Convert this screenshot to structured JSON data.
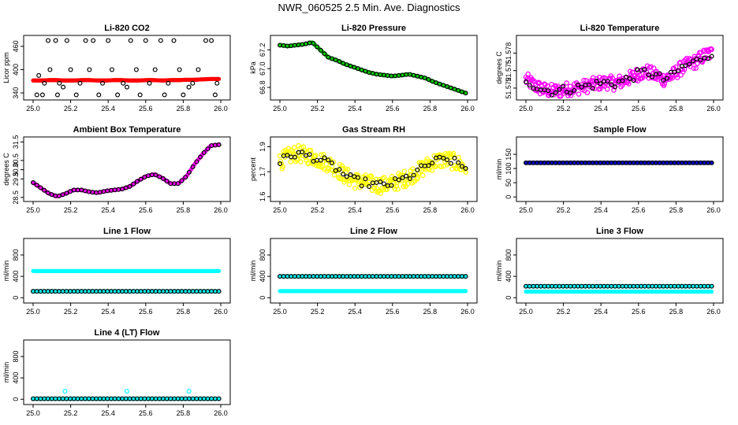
{
  "page": {
    "title": "NWR_060525  2.5 Min. Ave. Diagnostics"
  },
  "chart_data": [
    {
      "id": "co2",
      "type": "scatter",
      "title": "Li-820 CO2",
      "xlabel": "",
      "ylabel": "Licor ppm",
      "xlim": [
        25.0,
        26.0
      ],
      "ylim": [
        330,
        480
      ],
      "xticks": [
        25.0,
        25.2,
        25.4,
        25.6,
        25.8,
        26.0
      ],
      "yticks": [
        340,
        400,
        460
      ],
      "series": [
        {
          "color": "#ff0000",
          "marker": "dense",
          "y": [
            372,
            372,
            373,
            373,
            372,
            372,
            373,
            373,
            372,
            372,
            373,
            373,
            372,
            372,
            373,
            373,
            372,
            373,
            373,
            374,
            374,
            375,
            376,
            376
          ]
        },
        {
          "color": "#000000",
          "marker": "circle",
          "points": [
            [
              25.02,
              335
            ],
            [
              25.03,
              385
            ],
            [
              25.05,
              335
            ],
            [
              25.06,
              365
            ],
            [
              25.08,
              475
            ],
            [
              25.09,
              400
            ],
            [
              25.12,
              475
            ],
            [
              25.13,
              335
            ],
            [
              25.14,
              365
            ],
            [
              25.16,
              355
            ],
            [
              25.18,
              475
            ],
            [
              25.2,
              400
            ],
            [
              25.23,
              335
            ],
            [
              25.25,
              365
            ],
            [
              25.28,
              475
            ],
            [
              25.3,
              400
            ],
            [
              25.32,
              475
            ],
            [
              25.35,
              335
            ],
            [
              25.37,
              365
            ],
            [
              25.4,
              475
            ],
            [
              25.42,
              400
            ],
            [
              25.45,
              335
            ],
            [
              25.48,
              365
            ],
            [
              25.5,
              355
            ],
            [
              25.52,
              475
            ],
            [
              25.55,
              400
            ],
            [
              25.57,
              335
            ],
            [
              25.6,
              475
            ],
            [
              25.62,
              365
            ],
            [
              25.65,
              400
            ],
            [
              25.68,
              475
            ],
            [
              25.7,
              335
            ],
            [
              25.72,
              365
            ],
            [
              25.75,
              475
            ],
            [
              25.78,
              400
            ],
            [
              25.8,
              335
            ],
            [
              25.83,
              355
            ],
            [
              25.85,
              365
            ],
            [
              25.88,
              400
            ],
            [
              25.92,
              475
            ],
            [
              25.95,
              475
            ],
            [
              25.97,
              335
            ],
            [
              25.98,
              365
            ]
          ]
        }
      ]
    },
    {
      "id": "pressure",
      "type": "scatter",
      "title": "Li-820 Pressure",
      "xlabel": "",
      "ylabel": "kPa",
      "xlim": [
        25.0,
        26.0
      ],
      "ylim": [
        66.7,
        67.32
      ],
      "xticks": [
        25.0,
        25.2,
        25.4,
        25.6,
        25.8,
        26.0
      ],
      "yticks": [
        66.8,
        67.0,
        67.2
      ],
      "series": [
        {
          "color": "#00cc00",
          "marker": "dense",
          "y": [
            67.25,
            67.24,
            67.25,
            67.26,
            67.28,
            67.2,
            67.12,
            67.09,
            67.05,
            67.02,
            66.99,
            66.96,
            66.94,
            66.93,
            66.92,
            66.93,
            66.94,
            66.92,
            66.9,
            66.86,
            66.83,
            66.8,
            66.77,
            66.74
          ]
        },
        {
          "color": "#000000",
          "marker": "circle-line",
          "y": [
            67.25,
            67.24,
            67.25,
            67.26,
            67.28,
            67.2,
            67.12,
            67.09,
            67.05,
            67.02,
            66.99,
            66.96,
            66.94,
            66.93,
            66.92,
            66.93,
            66.94,
            66.92,
            66.9,
            66.86,
            66.83,
            66.8,
            66.77,
            66.74
          ]
        }
      ]
    },
    {
      "id": "temperature",
      "type": "scatter",
      "title": "Li-820 Temperature",
      "xlabel": "",
      "ylabel": "degrees C",
      "xlim": [
        25.0,
        26.0
      ],
      "ylim": [
        51.5705,
        51.5805
      ],
      "xticks": [
        25.0,
        25.2,
        25.4,
        25.6,
        25.8,
        26.0
      ],
      "yticks": [
        51.572,
        51.575,
        51.578
      ],
      "series": [
        {
          "color": "#ff00ff",
          "marker": "noisy",
          "noise": 0.0012,
          "y": [
            51.5735,
            51.5725,
            51.5718,
            51.5715,
            51.5715,
            51.5718,
            51.572,
            51.5722,
            51.5725,
            51.5728,
            51.573,
            51.5728,
            51.5732,
            51.5738,
            51.5745,
            51.5748,
            51.5742,
            51.5735,
            51.574,
            51.5752,
            51.576,
            51.5765,
            51.5775,
            51.578
          ]
        },
        {
          "color": "#000000",
          "marker": "circle-noisy",
          "noise": 0.0008,
          "y": [
            51.5735,
            51.5725,
            51.5718,
            51.5715,
            51.5715,
            51.5718,
            51.572,
            51.5722,
            51.5725,
            51.5728,
            51.573,
            51.5728,
            51.5732,
            51.5738,
            51.5745,
            51.5748,
            51.5742,
            51.5735,
            51.574,
            51.5752,
            51.576,
            51.5765,
            51.5775,
            51.578
          ]
        }
      ]
    },
    {
      "id": "ambient",
      "type": "scatter",
      "title": "Ambient Box Temperature",
      "xlabel": "",
      "ylabel": "degrees C",
      "xlim": [
        25.0,
        26.0
      ],
      "ylim": [
        28.45,
        31.6
      ],
      "xticks": [
        25.0,
        25.2,
        25.4,
        25.6,
        25.8,
        26.0
      ],
      "yticks": [
        28.5,
        29.5,
        30.0,
        30.5,
        31.5
      ],
      "series": [
        {
          "color": "#ff00ff",
          "marker": "dense",
          "y": [
            29.3,
            29.0,
            28.7,
            28.55,
            28.7,
            28.9,
            28.9,
            28.8,
            28.75,
            28.85,
            28.9,
            28.95,
            29.1,
            29.4,
            29.65,
            29.75,
            29.55,
            29.25,
            29.25,
            29.65,
            30.3,
            30.85,
            31.3,
            31.35
          ]
        },
        {
          "color": "#000000",
          "marker": "circle-line",
          "y": [
            29.3,
            29.0,
            28.7,
            28.55,
            28.7,
            28.9,
            28.9,
            28.8,
            28.75,
            28.85,
            28.9,
            28.95,
            29.1,
            29.4,
            29.65,
            29.75,
            29.55,
            29.25,
            29.25,
            29.65,
            30.3,
            30.85,
            31.3,
            31.35
          ]
        }
      ]
    },
    {
      "id": "rh",
      "type": "scatter",
      "title": "Gas Stream RH",
      "xlabel": "",
      "ylabel": "percent",
      "xlim": [
        25.0,
        26.0
      ],
      "ylim": [
        1.54,
        1.89
      ],
      "xticks": [
        25.0,
        25.2,
        25.4,
        25.6,
        25.8,
        26.0
      ],
      "yticks": [
        1.55,
        1.7,
        1.85
      ],
      "series": [
        {
          "color": "#ffff00",
          "marker": "noisy",
          "noise": 0.05,
          "y": [
            1.76,
            1.79,
            1.81,
            1.8,
            1.79,
            1.77,
            1.75,
            1.72,
            1.68,
            1.65,
            1.64,
            1.63,
            1.62,
            1.62,
            1.63,
            1.65,
            1.67,
            1.7,
            1.73,
            1.76,
            1.77,
            1.77,
            1.75,
            1.72
          ]
        },
        {
          "color": "#000000",
          "marker": "circle-noisy",
          "noise": 0.025,
          "y": [
            1.76,
            1.79,
            1.81,
            1.8,
            1.79,
            1.77,
            1.75,
            1.72,
            1.68,
            1.65,
            1.64,
            1.63,
            1.62,
            1.62,
            1.63,
            1.65,
            1.67,
            1.7,
            1.73,
            1.76,
            1.77,
            1.77,
            1.75,
            1.72
          ]
        }
      ]
    },
    {
      "id": "sampleflow",
      "type": "scatter",
      "title": "Sample Flow",
      "xlabel": "",
      "ylabel": "ml/min",
      "xlim": [
        25.0,
        26.0
      ],
      "ylim": [
        -5,
        200
      ],
      "xticks": [
        25.0,
        25.2,
        25.4,
        25.6,
        25.8,
        26.0
      ],
      "yticks": [
        0,
        50,
        100,
        150
      ],
      "series": [
        {
          "color": "#0000cc",
          "marker": "dense",
          "y": [
            120,
            120,
            120,
            120,
            120,
            120,
            120,
            120,
            120,
            120,
            120,
            120,
            120,
            120,
            120,
            120,
            120,
            120,
            120,
            120,
            120,
            120,
            120,
            120
          ]
        },
        {
          "color": "#000000",
          "marker": "circle-line",
          "y": [
            120,
            120,
            120,
            120,
            120,
            120,
            120,
            120,
            120,
            120,
            120,
            120,
            120,
            120,
            120,
            120,
            120,
            120,
            120,
            120,
            120,
            120,
            120,
            120
          ]
        }
      ]
    },
    {
      "id": "line1",
      "type": "scatter",
      "title": "Line 1 Flow",
      "xlabel": "",
      "ylabel": "ml/min",
      "xlim": [
        25.0,
        26.0
      ],
      "ylim": [
        -40,
        1050
      ],
      "xticks": [
        25.0,
        25.2,
        25.4,
        25.6,
        25.8,
        26.0
      ],
      "yticks": [
        0,
        400,
        800
      ],
      "series": [
        {
          "color": "#00ffff",
          "marker": "dense",
          "y": [
            500,
            500,
            500,
            500,
            500,
            500,
            500,
            500,
            500,
            500,
            500,
            500,
            500,
            500,
            500,
            500,
            500,
            500,
            500,
            500,
            500,
            500,
            500,
            500
          ]
        },
        {
          "color": "#00ffff",
          "marker": "dense",
          "y": [
            120,
            120,
            120,
            120,
            120,
            120,
            120,
            120,
            120,
            120,
            120,
            120,
            120,
            120,
            120,
            120,
            120,
            120,
            120,
            120,
            120,
            120,
            120,
            120
          ]
        },
        {
          "color": "#000000",
          "marker": "circle-line",
          "y": [
            120,
            120,
            120,
            120,
            120,
            120,
            120,
            120,
            120,
            120,
            120,
            120,
            120,
            120,
            120,
            120,
            120,
            120,
            120,
            120,
            120,
            120,
            120,
            120
          ]
        }
      ]
    },
    {
      "id": "line2",
      "type": "scatter",
      "title": "Line 2 Flow",
      "xlabel": "",
      "ylabel": "ml/min",
      "xlim": [
        25.0,
        26.0
      ],
      "ylim": [
        -40,
        1050
      ],
      "xticks": [
        25.0,
        25.2,
        25.4,
        25.6,
        25.8,
        26.0
      ],
      "yticks": [
        0,
        400,
        800
      ],
      "series": [
        {
          "color": "#00ffff",
          "marker": "dense",
          "y": [
            400,
            400,
            400,
            400,
            400,
            400,
            400,
            400,
            400,
            400,
            400,
            400,
            400,
            400,
            400,
            400,
            400,
            400,
            400,
            400,
            400,
            400,
            400,
            400
          ]
        },
        {
          "color": "#00ffff",
          "marker": "dense",
          "y": [
            125,
            125,
            125,
            125,
            125,
            125,
            125,
            125,
            125,
            125,
            125,
            125,
            125,
            125,
            125,
            125,
            125,
            125,
            125,
            125,
            125,
            125,
            125,
            125
          ]
        },
        {
          "color": "#000000",
          "marker": "circle-line",
          "y": [
            400,
            400,
            400,
            400,
            400,
            400,
            400,
            400,
            400,
            400,
            400,
            400,
            400,
            400,
            400,
            400,
            400,
            400,
            400,
            400,
            400,
            400,
            400,
            400
          ]
        }
      ]
    },
    {
      "id": "line3",
      "type": "scatter",
      "title": "Line 3 Flow",
      "xlabel": "",
      "ylabel": "ml/min",
      "xlim": [
        25.0,
        26.0
      ],
      "ylim": [
        -40,
        1050
      ],
      "xticks": [
        25.0,
        25.2,
        25.4,
        25.6,
        25.8,
        26.0
      ],
      "yticks": [
        0,
        400,
        800
      ],
      "series": [
        {
          "color": "#00ffff",
          "marker": "dense",
          "y": [
            215,
            215,
            215,
            215,
            215,
            215,
            215,
            215,
            215,
            215,
            215,
            215,
            215,
            215,
            215,
            215,
            215,
            215,
            215,
            215,
            215,
            215,
            215,
            215
          ]
        },
        {
          "color": "#00ffff",
          "marker": "dense",
          "y": [
            115,
            115,
            115,
            115,
            115,
            115,
            115,
            115,
            115,
            115,
            115,
            115,
            115,
            115,
            115,
            115,
            115,
            115,
            115,
            115,
            115,
            115,
            115,
            115
          ]
        },
        {
          "color": "#000000",
          "marker": "circle-line",
          "y": [
            215,
            215,
            215,
            215,
            215,
            215,
            215,
            215,
            215,
            215,
            215,
            215,
            215,
            215,
            215,
            215,
            215,
            215,
            215,
            215,
            215,
            215,
            215,
            215
          ]
        }
      ]
    },
    {
      "id": "line4",
      "type": "scatter",
      "title": "Line 4 (LT) Flow",
      "xlabel": "",
      "ylabel": "ml/min",
      "xlim": [
        25.0,
        26.0
      ],
      "ylim": [
        -40,
        1050
      ],
      "xticks": [
        25.0,
        25.2,
        25.4,
        25.6,
        25.8,
        26.0
      ],
      "yticks": [
        0,
        400,
        800
      ],
      "series": [
        {
          "color": "#00ffff",
          "marker": "dense",
          "y": [
            10,
            10,
            10,
            10,
            10,
            10,
            10,
            10,
            10,
            10,
            10,
            10,
            10,
            10,
            10,
            10,
            10,
            10,
            10,
            10,
            10,
            10,
            10,
            10
          ]
        },
        {
          "color": "#00ffff",
          "marker": "circle",
          "points": [
            [
              25.17,
              150
            ],
            [
              25.5,
              150
            ],
            [
              25.83,
              150
            ]
          ]
        },
        {
          "color": "#000000",
          "marker": "circle-line",
          "y": [
            10,
            10,
            10,
            10,
            10,
            10,
            10,
            10,
            10,
            10,
            10,
            10,
            10,
            10,
            10,
            10,
            10,
            10,
            10,
            10,
            10,
            10,
            10,
            10
          ]
        }
      ]
    }
  ]
}
